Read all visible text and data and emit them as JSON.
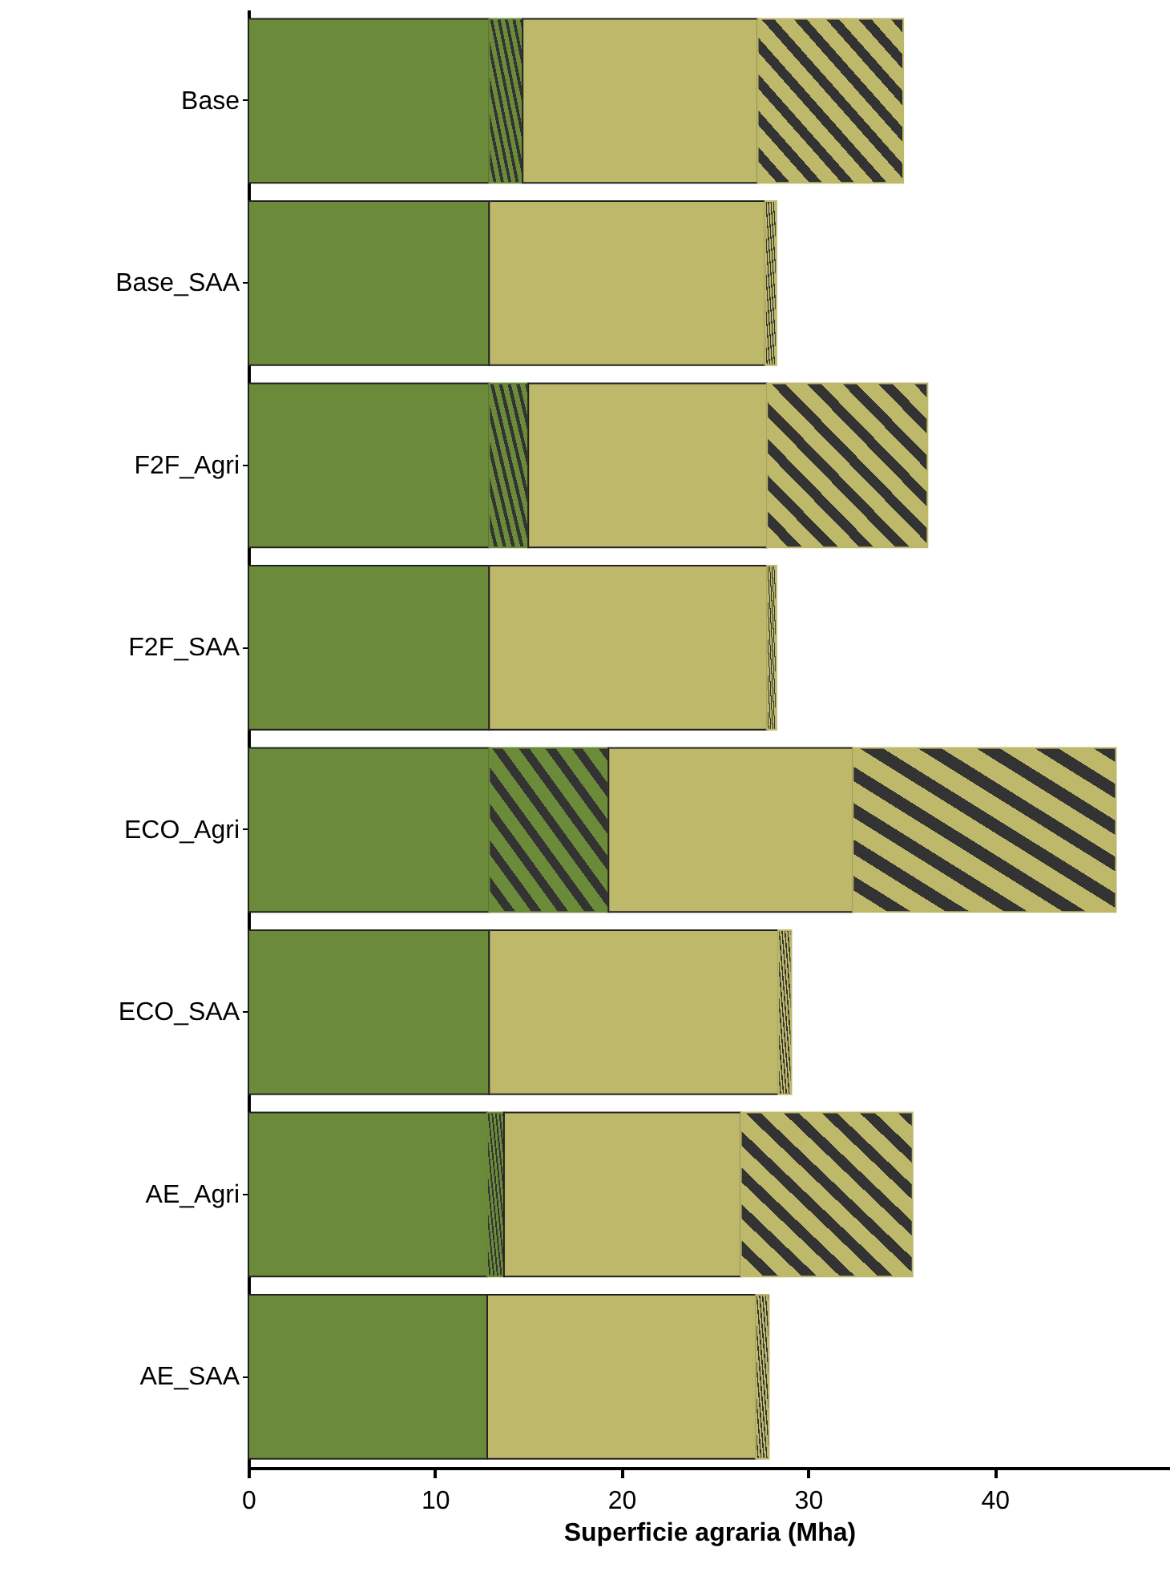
{
  "chart_data": {
    "type": "bar",
    "orientation": "horizontal",
    "stacked": true,
    "xlabel": "Superficie agraria (Mha)",
    "categories": [
      "Base",
      "Base_SAA",
      "F2F_Agri",
      "F2F_SAA",
      "ECO_Agri",
      "ECO_SAA",
      "AE_Agri",
      "AE_SAA"
    ],
    "series": [
      {
        "color": "#6b8a3a",
        "values": [
          12.9,
          12.9,
          12.9,
          12.9,
          12.9,
          12.9,
          12.8,
          12.8
        ]
      },
      {
        "color": "#6b8a3a",
        "values": [
          1.8,
          0,
          2.1,
          0,
          6.4,
          0,
          0.9,
          0
        ]
      },
      {
        "color": "#bdb86a",
        "values": [
          12.6,
          14.8,
          12.8,
          14.9,
          13.1,
          15.5,
          12.7,
          14.4
        ]
      },
      {
        "color": "#bdb86a",
        "values": [
          7.8,
          0.6,
          8.6,
          0.5,
          14.1,
          0.7,
          9.2,
          0.7
        ]
      }
    ],
    "xlim": [
      0,
      49.4
    ],
    "xticks": [
      0,
      10,
      20,
      30,
      40
    ],
    "grid": false
  }
}
